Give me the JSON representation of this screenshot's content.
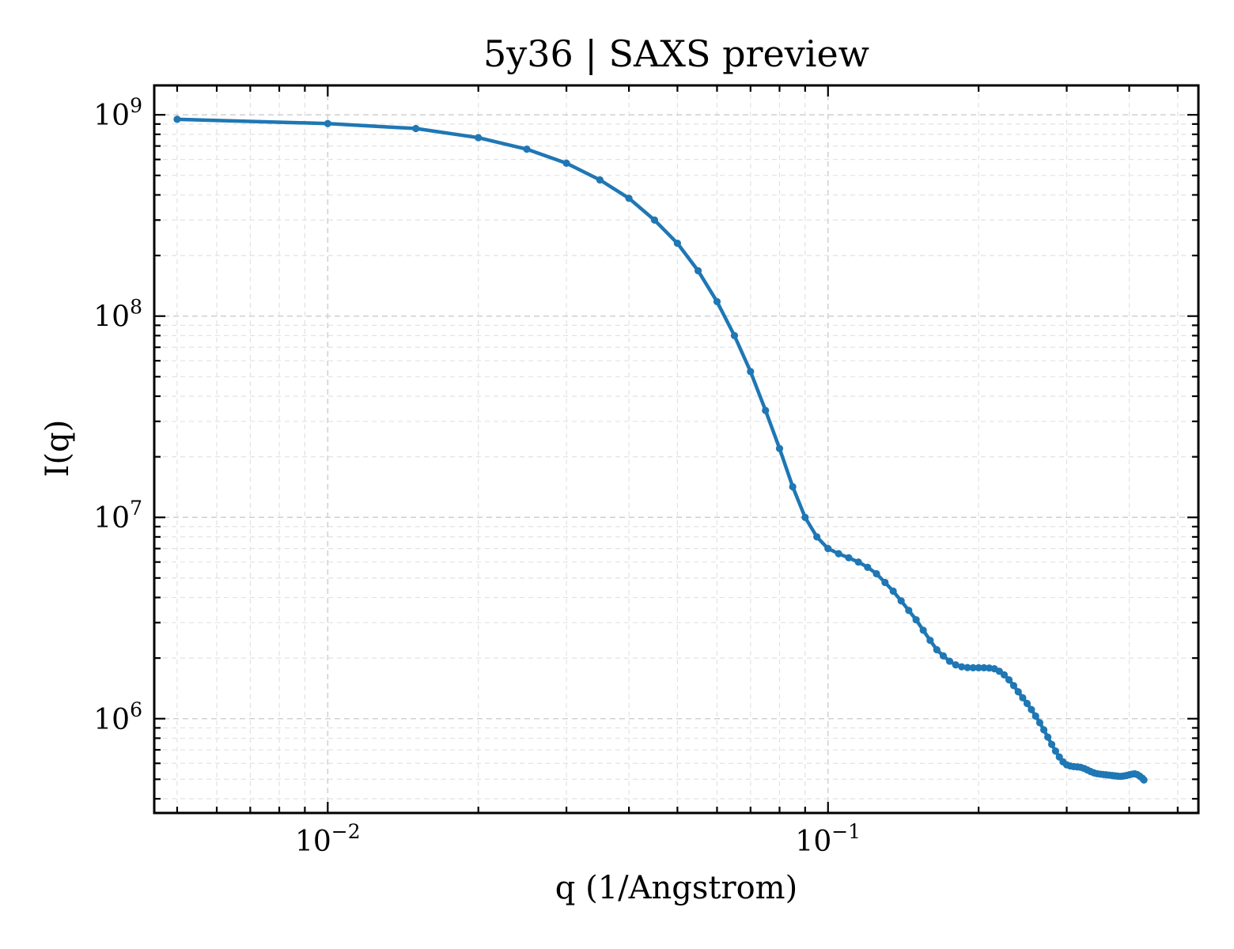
{
  "chart_data": {
    "type": "line",
    "title": "5y36 | SAXS preview",
    "xlabel": "q (1/Angstrom)",
    "ylabel": "I(q)",
    "xscale": "log",
    "yscale": "log",
    "xlim": [
      0.0045,
      0.55
    ],
    "ylim": [
      340000,
      1400000000
    ],
    "grid": true,
    "line_color": "#1f77b4",
    "x_ticks": [
      {
        "value": 0.01,
        "base": "10",
        "exp": "−2"
      },
      {
        "value": 0.1,
        "base": "10",
        "exp": "−1"
      }
    ],
    "y_ticks": [
      {
        "value": 1000000,
        "base": "10",
        "exp": "6"
      },
      {
        "value": 10000000,
        "base": "10",
        "exp": "7"
      },
      {
        "value": 100000000,
        "base": "10",
        "exp": "8"
      },
      {
        "value": 1000000000,
        "base": "10",
        "exp": "9"
      }
    ],
    "series": [
      {
        "points": [
          [
            0.005,
            950000000
          ],
          [
            0.01,
            905000000
          ],
          [
            0.015,
            855000000
          ],
          [
            0.02,
            770000000
          ],
          [
            0.025,
            675000000
          ],
          [
            0.03,
            575000000
          ],
          [
            0.035,
            475000000
          ],
          [
            0.04,
            385000000
          ],
          [
            0.045,
            300000000
          ],
          [
            0.05,
            230000000
          ],
          [
            0.055,
            168000000
          ],
          [
            0.06,
            118000000
          ],
          [
            0.065,
            80000000
          ],
          [
            0.07,
            53000000
          ],
          [
            0.075,
            34000000
          ],
          [
            0.08,
            22000000
          ],
          [
            0.085,
            14200000
          ],
          [
            0.09,
            10000000
          ],
          [
            0.095,
            8000000
          ],
          [
            0.1,
            7000000
          ],
          [
            0.105,
            6600000
          ],
          [
            0.11,
            6300000
          ],
          [
            0.115,
            6000000
          ],
          [
            0.12,
            5650000
          ],
          [
            0.125,
            5250000
          ],
          [
            0.13,
            4750000
          ],
          [
            0.135,
            4300000
          ],
          [
            0.14,
            3850000
          ],
          [
            0.145,
            3450000
          ],
          [
            0.15,
            3100000
          ],
          [
            0.155,
            2750000
          ],
          [
            0.16,
            2450000
          ],
          [
            0.165,
            2200000
          ],
          [
            0.17,
            2050000
          ],
          [
            0.175,
            1930000
          ],
          [
            0.18,
            1850000
          ],
          [
            0.185,
            1810000
          ],
          [
            0.19,
            1795000
          ],
          [
            0.195,
            1790000
          ],
          [
            0.2,
            1790000
          ],
          [
            0.205,
            1790000
          ],
          [
            0.21,
            1785000
          ],
          [
            0.215,
            1770000
          ],
          [
            0.22,
            1720000
          ],
          [
            0.225,
            1650000
          ],
          [
            0.23,
            1560000
          ],
          [
            0.235,
            1460000
          ],
          [
            0.24,
            1360000
          ],
          [
            0.245,
            1270000
          ],
          [
            0.25,
            1190000
          ],
          [
            0.255,
            1110000
          ],
          [
            0.26,
            1030000
          ],
          [
            0.265,
            955000
          ],
          [
            0.27,
            880000
          ],
          [
            0.275,
            810000
          ],
          [
            0.28,
            745000
          ],
          [
            0.285,
            690000
          ],
          [
            0.29,
            645000
          ],
          [
            0.295,
            610000
          ],
          [
            0.3,
            590000
          ],
          [
            0.305,
            582000
          ],
          [
            0.31,
            578000
          ],
          [
            0.315,
            576000
          ],
          [
            0.32,
            573000
          ],
          [
            0.325,
            566000
          ],
          [
            0.33,
            556000
          ],
          [
            0.335,
            546000
          ],
          [
            0.34,
            538000
          ],
          [
            0.345,
            533000
          ],
          [
            0.35,
            530000
          ],
          [
            0.355,
            528000
          ],
          [
            0.36,
            526000
          ],
          [
            0.365,
            524000
          ],
          [
            0.37,
            522000
          ],
          [
            0.375,
            520000
          ],
          [
            0.38,
            518000
          ],
          [
            0.385,
            517000
          ],
          [
            0.39,
            519000
          ],
          [
            0.395,
            522000
          ],
          [
            0.4,
            526000
          ],
          [
            0.405,
            530000
          ],
          [
            0.41,
            532000
          ],
          [
            0.415,
            528000
          ],
          [
            0.42,
            518000
          ],
          [
            0.425,
            506000
          ],
          [
            0.428,
            496000
          ]
        ]
      }
    ]
  }
}
